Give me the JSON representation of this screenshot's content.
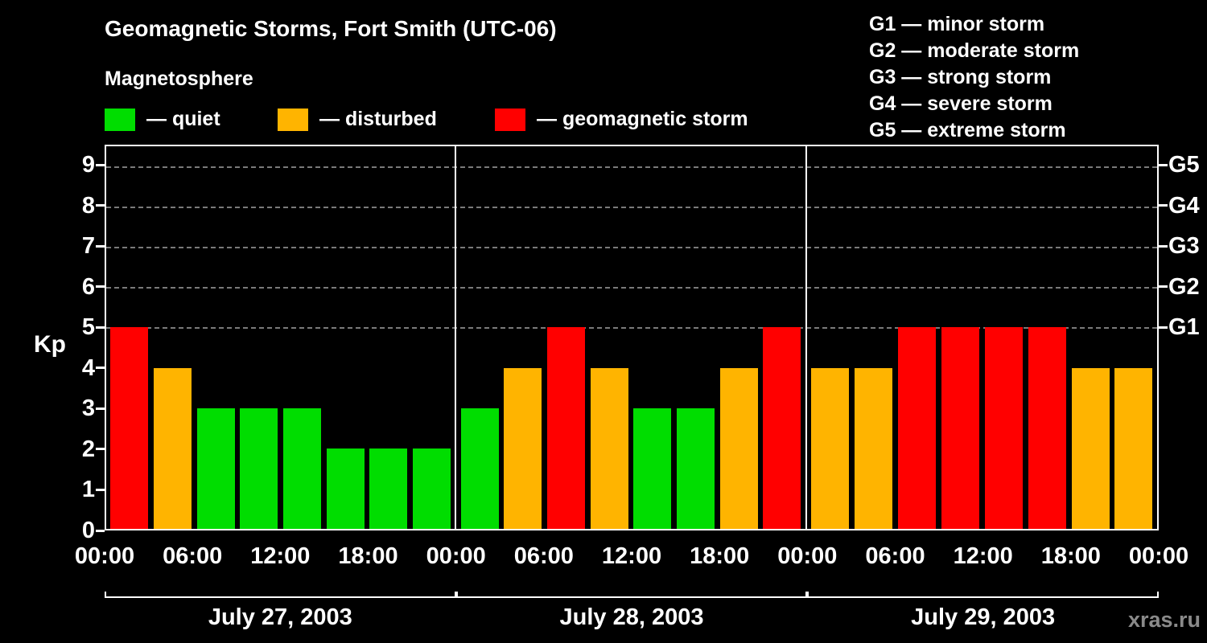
{
  "title": "Geomagnetic Storms, Fort Smith (UTC-06)",
  "subtitle": "Magnetosphere",
  "watermark": "xras.ru",
  "legend": {
    "items": [
      {
        "name": "quiet",
        "label": "— quiet",
        "color": "#00dd00"
      },
      {
        "name": "disturbed",
        "label": "— disturbed",
        "color": "#ffb400"
      },
      {
        "name": "storm",
        "label": "— geomagnetic storm",
        "color": "#ff0000"
      }
    ]
  },
  "storm_scale_legend": [
    "G1 — minor storm",
    "G2 — moderate storm",
    "G3 — strong storm",
    "G4 — severe storm",
    "G5 — extreme storm"
  ],
  "chart_data": {
    "type": "bar",
    "title": "Geomagnetic Storms, Fort Smith (UTC-06)",
    "ylabel": "Kp",
    "ylim": [
      0,
      9.5
    ],
    "yticks": [
      0,
      1,
      2,
      3,
      4,
      5,
      6,
      7,
      8,
      9
    ],
    "grid_levels": [
      5,
      6,
      7,
      8,
      9
    ],
    "right_axis": [
      {
        "kp": 5,
        "label": "G1"
      },
      {
        "kp": 6,
        "label": "G2"
      },
      {
        "kp": 7,
        "label": "G3"
      },
      {
        "kp": 8,
        "label": "G4"
      },
      {
        "kp": 9,
        "label": "G5"
      }
    ],
    "colors": {
      "quiet": "#00dd00",
      "disturbed": "#ffb400",
      "storm": "#ff0000"
    },
    "color_rule": "Kp<=3 quiet (green), Kp=4 disturbed (orange), Kp>=5 geomagnetic storm (red)",
    "x_ticks_per_day": [
      "00:00",
      "06:00",
      "12:00",
      "18:00"
    ],
    "x_end_label": "00:00",
    "bar_interval_hours": 3,
    "days": [
      {
        "label": "July 27, 2003",
        "values": [
          5,
          4,
          3,
          3,
          3,
          2,
          2,
          2
        ]
      },
      {
        "label": "July 28, 2003",
        "values": [
          3,
          4,
          5,
          4,
          3,
          3,
          4,
          5
        ]
      },
      {
        "label": "July 29, 2003",
        "values": [
          4,
          4,
          5,
          5,
          5,
          5,
          4,
          4
        ]
      }
    ]
  }
}
